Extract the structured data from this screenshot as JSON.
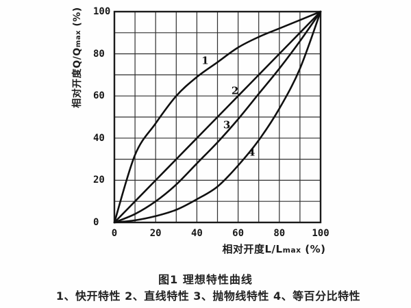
{
  "figure_title": "图1  理想特性曲线",
  "legend_line": "1、快开特性  2、直线特性  3、抛物线特性  4、等百分比特性",
  "axes": {
    "y_label_prefix": "相对开度Q/Q",
    "y_label_sub": "max",
    "y_label_suffix": " (%)",
    "x_label_prefix": "相对开度L/L",
    "x_label_sub": "max",
    "x_label_suffix": " (%)"
  },
  "colors": {
    "background": "#fefefe",
    "grid": "#2e2e2e",
    "axis_border": "#1a1a1a",
    "curve": "#101010",
    "text": "#1c1c1c"
  },
  "chart_data": {
    "type": "line",
    "title": "理想特性曲线",
    "xlabel": "相对开度L/Lmax (%)",
    "ylabel": "相对开度Q/Qmax (%)",
    "xlim": [
      0,
      100
    ],
    "ylim": [
      0,
      100
    ],
    "grid": true,
    "grid_step": 10,
    "x_ticks": [
      "0",
      "20",
      "40",
      "60",
      "80",
      "100"
    ],
    "y_ticks": [
      "100",
      "80",
      "60",
      "40",
      "20",
      "0"
    ],
    "legend_position": "below-caption",
    "x": [
      0,
      10,
      20,
      30,
      40,
      50,
      60,
      70,
      80,
      90,
      100
    ],
    "series": [
      {
        "name": "快开特性",
        "label": "1",
        "label_x": 44,
        "label_y": 76.5,
        "values": [
          0,
          32,
          47,
          60,
          69,
          76,
          83,
          88,
          92,
          96,
          100
        ]
      },
      {
        "name": "直线特性",
        "label": "2",
        "label_x": 58.5,
        "label_y": 62.5,
        "values": [
          0,
          10,
          20,
          30,
          40,
          50,
          60,
          70,
          80,
          90,
          100
        ]
      },
      {
        "name": "抛物线特性",
        "label": "3",
        "label_x": 54.5,
        "label_y": 46,
        "values": [
          0,
          4,
          10,
          18,
          28,
          38,
          49,
          61,
          73,
          86,
          100
        ]
      },
      {
        "name": "等百分比特性",
        "label": "4",
        "label_x": 66.5,
        "label_y": 33,
        "values": [
          0,
          1,
          3,
          6,
          11,
          17,
          27,
          39,
          54,
          73,
          100
        ]
      }
    ]
  }
}
